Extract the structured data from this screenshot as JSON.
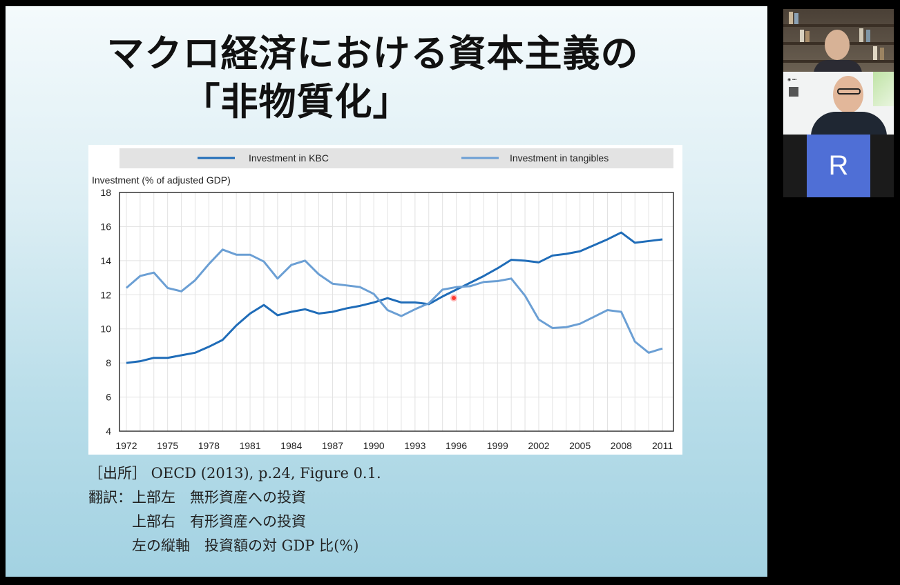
{
  "slide": {
    "title_line1": "マクロ経済における資本主義の",
    "title_line2": "「非物質化」",
    "source": "［出所］ OECD (2013), p.24, Figure 0.1.",
    "translation": [
      "翻訳：上部左　無形資産への投資",
      "　　　上部右　有形資産への投資",
      "　　　左の縦軸　投資額の対 GDP 比(%)"
    ]
  },
  "chart_data": {
    "type": "line",
    "ylabel": "Investment (% of adjusted GDP)",
    "ylim": [
      4,
      18
    ],
    "yticks": [
      "4",
      "6",
      "8",
      "10",
      "12",
      "14",
      "16",
      "18"
    ],
    "xticks": [
      "1972",
      "1975",
      "1978",
      "1981",
      "1984",
      "1987",
      "1990",
      "1993",
      "1996",
      "1999",
      "2002",
      "2005",
      "2008",
      "2011"
    ],
    "x": [
      1972,
      1973,
      1974,
      1975,
      1976,
      1977,
      1978,
      1979,
      1980,
      1981,
      1982,
      1983,
      1984,
      1985,
      1986,
      1987,
      1988,
      1989,
      1990,
      1991,
      1992,
      1993,
      1994,
      1995,
      1996,
      1997,
      1998,
      1999,
      2000,
      2001,
      2002,
      2003,
      2004,
      2005,
      2006,
      2007,
      2008,
      2009,
      2010,
      2011
    ],
    "legend_position": "top",
    "grid": true,
    "series": [
      {
        "name": "Investment in KBC",
        "color": "#1f6cb8",
        "values": [
          8.0,
          8.1,
          8.3,
          8.3,
          8.45,
          8.6,
          8.95,
          9.35,
          10.2,
          10.9,
          11.4,
          10.8,
          11.0,
          11.15,
          10.9,
          11.0,
          11.2,
          11.35,
          11.55,
          11.8,
          11.55,
          11.55,
          11.45,
          11.9,
          12.3,
          12.7,
          13.1,
          13.55,
          14.05,
          14.0,
          13.9,
          14.3,
          14.4,
          14.55,
          14.9,
          15.25,
          15.65,
          15.05,
          15.15,
          15.25
        ]
      },
      {
        "name": "Investment in tangibles",
        "color": "#6b9fd4",
        "values": [
          12.4,
          13.1,
          13.3,
          12.4,
          12.2,
          12.85,
          13.8,
          14.65,
          14.35,
          14.35,
          13.95,
          12.95,
          13.75,
          14.0,
          13.2,
          12.65,
          12.55,
          12.45,
          12.05,
          11.1,
          10.75,
          11.15,
          11.5,
          12.3,
          12.45,
          12.5,
          12.75,
          12.8,
          12.95,
          11.95,
          10.55,
          10.05,
          10.1,
          10.3,
          10.7,
          11.1,
          11.0,
          9.25,
          8.6,
          8.85
        ]
      }
    ]
  },
  "participants": {
    "avatar_letter": "R"
  }
}
